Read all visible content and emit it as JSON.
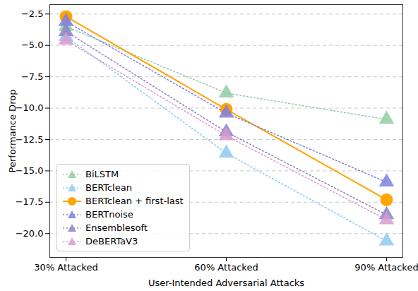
{
  "chart_data": {
    "type": "line",
    "x_label": "User-Intended Adversarial Attacks",
    "y_label": "Performance Drop",
    "categories": [
      "30% Attacked",
      "60% Attacked",
      "90% Attacked"
    ],
    "ylim": [
      -21.9,
      -1.75
    ],
    "yticks": [
      {
        "value": -2.5,
        "label": "−2.5"
      },
      {
        "value": -5.0,
        "label": "−5.0"
      },
      {
        "value": -7.5,
        "label": "−7.5"
      },
      {
        "value": -10.0,
        "label": "−10.0"
      },
      {
        "value": -12.5,
        "label": "−12.5"
      },
      {
        "value": -15.0,
        "label": "−15.0"
      },
      {
        "value": -17.5,
        "label": "−17.5"
      },
      {
        "value": -20.0,
        "label": "−20.0"
      }
    ],
    "grid": true,
    "legend": "lower left",
    "series": [
      {
        "name": "BiLSTM",
        "color": "#93cca3",
        "marker": "triangle",
        "line_style": "dotted",
        "values": [
          -3.5,
          -8.8,
          -10.9
        ]
      },
      {
        "name": "BERTclean",
        "color": "#8ecbf2",
        "marker": "triangle",
        "line_style": "dotted",
        "values": [
          -4.3,
          -13.6,
          -20.6
        ]
      },
      {
        "name": "BERTclean + first-last",
        "color": "#ffa500",
        "marker": "circle",
        "line_style": "solid",
        "values": [
          -2.7,
          -10.1,
          -17.3
        ]
      },
      {
        "name": "BERTnoise",
        "color": "#7f7fe0",
        "marker": "triangle",
        "line_style": "dotted",
        "values": [
          -3.1,
          -10.4,
          -15.9
        ]
      },
      {
        "name": "Ensemblesoft",
        "color": "#8a84c4",
        "marker": "triangle",
        "line_style": "dotted",
        "values": [
          -3.9,
          -11.9,
          -18.5
        ]
      },
      {
        "name": "DeBERTaV3",
        "color": "#d79bd0",
        "marker": "triangle",
        "line_style": "dotted",
        "values": [
          -4.6,
          -12.2,
          -18.9
        ]
      }
    ]
  }
}
